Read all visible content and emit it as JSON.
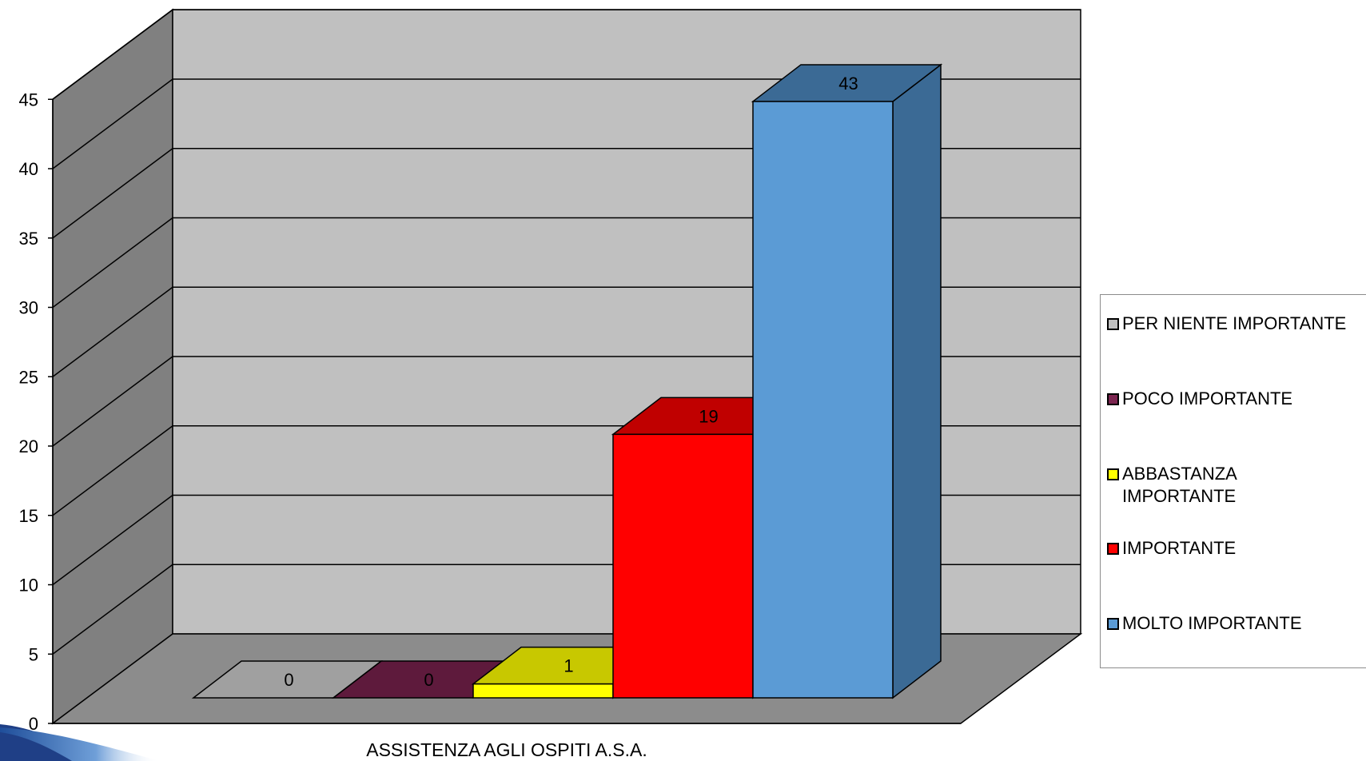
{
  "chart_data": {
    "type": "bar",
    "style": "3d-clustered-column",
    "categories": [
      "ASSISTENZA AGLI OSPITI A.S.A."
    ],
    "series": [
      {
        "name": "PER NIENTE IMPORTANTE",
        "values": [
          0
        ],
        "color": "#c0c0c0",
        "side": "#a0a0a0"
      },
      {
        "name": "POCO IMPORTANTE",
        "values": [
          0
        ],
        "color": "#7b2550",
        "side": "#5e1a3c"
      },
      {
        "name": "ABBASTANZA\nIMPORTANTE",
        "values": [
          1
        ],
        "color": "#ffff00",
        "side": "#c8c800"
      },
      {
        "name": "IMPORTANTE",
        "values": [
          19
        ],
        "color": "#ff0000",
        "side": "#c00000"
      },
      {
        "name": "MOLTO IMPORTANTE",
        "values": [
          43
        ],
        "color": "#5b9bd5",
        "side": "#3b6a95"
      }
    ],
    "data_labels": [
      "0",
      "0",
      "1",
      "19",
      "43"
    ],
    "y_ticks": [
      "0",
      "5",
      "10",
      "15",
      "20",
      "25",
      "30",
      "35",
      "40",
      "45"
    ],
    "ylim": [
      0,
      45
    ],
    "grid": true,
    "wall_color": "#c0c0c0",
    "side_wall_color": "#808080",
    "floor_color": "#8c8c8c",
    "legend_position": "right"
  }
}
